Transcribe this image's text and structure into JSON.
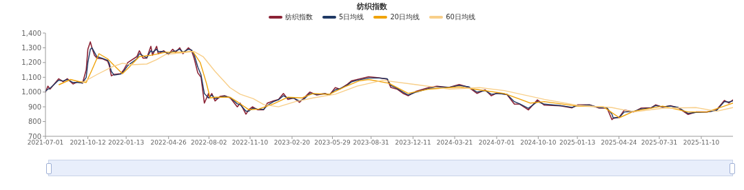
{
  "chart_data": {
    "type": "line",
    "title": "纺织指数",
    "legend": "top",
    "x": [
      "2021-07-01",
      "2021-07-07",
      "2021-07-12",
      "2021-08-02",
      "2021-08-13",
      "2021-08-23",
      "2021-09-06",
      "2021-09-17",
      "2021-09-29",
      "2021-10-08",
      "2021-10-12",
      "2021-10-18",
      "2021-10-22",
      "2021-10-28",
      "2021-11-03",
      "2021-11-17",
      "2021-11-29",
      "2021-12-03",
      "2021-12-08",
      "2021-12-15",
      "2021-12-31",
      "2022-01-07",
      "2022-01-17",
      "2022-02-08",
      "2022-02-14",
      "2022-02-23",
      "2022-03-04",
      "2022-03-14",
      "2022-03-18",
      "2022-03-28",
      "2022-04-01",
      "2022-04-14",
      "2022-04-26",
      "2022-05-06",
      "2022-05-13",
      "2022-05-23",
      "2022-05-31",
      "2022-06-13",
      "2022-06-21",
      "2022-06-27",
      "2022-07-06",
      "2022-07-14",
      "2022-07-22",
      "2022-08-01",
      "2022-08-03",
      "2022-08-09",
      "2022-08-17",
      "2022-08-29",
      "2022-09-09",
      "2022-09-23",
      "2022-10-10",
      "2022-10-17",
      "2022-10-31",
      "2022-11-07",
      "2022-11-16",
      "2022-11-28",
      "2022-12-13",
      "2022-12-22",
      "2023-01-06",
      "2023-01-18",
      "2023-01-30",
      "2023-02-10",
      "2023-02-24",
      "2023-03-10",
      "2023-03-21",
      "2023-04-04",
      "2023-04-21",
      "2023-05-11",
      "2023-05-22",
      "2023-06-05",
      "2023-06-16",
      "2023-07-03",
      "2023-07-14",
      "2023-07-28",
      "2023-08-25",
      "2023-09-19",
      "2023-10-09",
      "2023-10-18",
      "2023-11-02",
      "2023-11-16",
      "2023-11-29",
      "2023-12-19",
      "2024-01-19",
      "2024-02-07",
      "2024-03-07",
      "2024-04-01",
      "2024-04-25",
      "2024-05-14",
      "2024-06-03",
      "2024-06-18",
      "2024-07-02",
      "2024-07-26",
      "2024-08-13",
      "2024-08-26",
      "2024-09-16",
      "2024-10-08",
      "2024-10-25",
      "2024-12-03",
      "2024-12-31",
      "2025-01-13",
      "2025-02-12",
      "2025-03-07",
      "2025-03-26",
      "2025-04-07",
      "2025-04-10",
      "2025-04-25",
      "2025-05-07",
      "2025-05-30",
      "2025-06-17",
      "2025-07-11",
      "2025-07-22",
      "2025-08-08",
      "2025-08-27",
      "2025-09-15",
      "2025-10-09",
      "2025-10-28",
      "2025-11-24",
      "2025-12-17",
      "2026-01-05",
      "2026-01-16",
      "2026-01-26"
    ],
    "series": [
      {
        "name": "纺织指数",
        "color": "#8b2335",
        "values": [
          1000,
          1040,
          1020,
          1090,
          1070,
          1090,
          1055,
          1070,
          1060,
          1150,
          1290,
          1340,
          1300,
          1250,
          1230,
          1225,
          1210,
          1180,
          1110,
          1120,
          1125,
          1150,
          1200,
          1240,
          1280,
          1230,
          1230,
          1310,
          1250,
          1310,
          1260,
          1280,
          1255,
          1290,
          1270,
          1300,
          1260,
          1300,
          1280,
          1230,
          1130,
          1100,
          925,
          990,
          960,
          990,
          940,
          970,
          975,
          960,
          900,
          925,
          850,
          880,
          900,
          880,
          880,
          925,
          940,
          950,
          990,
          950,
          960,
          930,
          960,
          1000,
          980,
          990,
          980,
          1030,
          1020,
          1050,
          1075,
          1085,
          1104,
          1097,
          1088,
          1031,
          1020,
          992,
          975,
          1006,
          1031,
          1039,
          1031,
          1051,
          1031,
          991,
          1015,
          975,
          994,
          983,
          918,
          918,
          879,
          947,
          911,
          907,
          893,
          913,
          913,
          891,
          893,
          813,
          821,
          830,
          878,
          865,
          891,
          893,
          913,
          897,
          907,
          893,
          848,
          865,
          865,
          878,
          943,
          926,
          947
        ]
      },
      {
        "name": "5日均线",
        "color": "#1f3864",
        "values": [
          1005,
          1020,
          1025,
          1080,
          1075,
          1085,
          1065,
          1065,
          1062,
          1100,
          1200,
          1290,
          1300,
          1270,
          1240,
          1228,
          1215,
          1195,
          1140,
          1115,
          1122,
          1140,
          1180,
          1225,
          1260,
          1245,
          1232,
          1280,
          1270,
          1290,
          1275,
          1275,
          1262,
          1275,
          1278,
          1290,
          1270,
          1290,
          1285,
          1255,
          1170,
          1115,
          990,
          960,
          965,
          980,
          955,
          965,
          972,
          962,
          920,
          915,
          870,
          870,
          890,
          885,
          882,
          910,
          935,
          948,
          975,
          960,
          958,
          940,
          952,
          990,
          985,
          988,
          982,
          1015,
          1022,
          1045,
          1068,
          1080,
          1095,
          1095,
          1090,
          1045,
          1025,
          1000,
          980,
          1000,
          1025,
          1035,
          1032,
          1045,
          1035,
          1000,
          1010,
          985,
          990,
          985,
          935,
          920,
          890,
          935,
          918,
          908,
          896,
          908,
          912,
          895,
          893,
          850,
          825,
          828,
          865,
          868,
          886,
          892,
          908,
          900,
          905,
          896,
          855,
          862,
          865,
          875,
          935,
          932,
          940
        ]
      },
      {
        "name": "20日均线",
        "color": "#f0a30a",
        "x": [
          "2021-08-03",
          "2021-08-31",
          "2021-09-22",
          "2021-10-08",
          "2021-10-22",
          "2021-11-08",
          "2021-11-29",
          "2021-12-15",
          "2022-01-04",
          "2022-01-17",
          "2022-02-14",
          "2022-03-16",
          "2022-04-19",
          "2022-05-23",
          "2022-06-24",
          "2022-07-12",
          "2022-07-27",
          "2022-08-05",
          "2022-08-17",
          "2022-09-22",
          "2022-10-12",
          "2022-11-07",
          "2022-12-01",
          "2023-01-06",
          "2023-02-10",
          "2023-03-15",
          "2023-04-12",
          "2023-05-22",
          "2023-06-28",
          "2023-08-01",
          "2023-08-25",
          "2023-10-13",
          "2023-11-29",
          "2024-01-19",
          "2024-04-01",
          "2024-05-20",
          "2024-07-20",
          "2024-09-21",
          "2024-10-25",
          "2025-01-13",
          "2025-03-17",
          "2025-04-25",
          "2025-05-30",
          "2025-08-08",
          "2025-10-09",
          "2025-11-24",
          "2026-01-05",
          "2026-01-26"
        ],
        "values": [
          1050,
          1085,
          1070,
          1065,
          1150,
          1260,
          1225,
          1180,
          1125,
          1160,
          1240,
          1250,
          1270,
          1270,
          1275,
          1200,
          1060,
          960,
          965,
          965,
          930,
          880,
          885,
          920,
          965,
          960,
          990,
          985,
          1035,
          1075,
          1085,
          1060,
          991,
          1020,
          1035,
          1015,
          990,
          925,
          935,
          905,
          900,
          826,
          870,
          905,
          865,
          865,
          905,
          925
        ]
      },
      {
        "name": "60日均线",
        "color": "#f8cf8a",
        "x": [
          "2021-09-29",
          "2021-11-04",
          "2021-12-09",
          "2022-01-04",
          "2022-01-26",
          "2022-03-04",
          "2022-03-28",
          "2022-04-19",
          "2022-05-23",
          "2022-06-27",
          "2022-07-19",
          "2022-08-17",
          "2022-09-22",
          "2022-10-17",
          "2022-11-18",
          "2022-12-13",
          "2023-01-18",
          "2023-02-28",
          "2023-04-12",
          "2023-06-05",
          "2023-07-28",
          "2023-09-28",
          "2023-12-19",
          "2024-03-07",
          "2024-05-20",
          "2024-07-20",
          "2024-10-25",
          "2025-01-13",
          "2025-04-07",
          "2025-05-30",
          "2025-08-08",
          "2025-10-28",
          "2025-12-17",
          "2026-01-26"
        ],
        "values": [
          1065,
          1120,
          1170,
          1195,
          1185,
          1190,
          1220,
          1255,
          1265,
          1275,
          1240,
          1140,
          1030,
          985,
          955,
          915,
          900,
          935,
          960,
          985,
          1040,
          1080,
          1050,
          1020,
          1030,
          1010,
          950,
          910,
          895,
          865,
          890,
          895,
          870,
          895
        ]
      }
    ],
    "xlim": [
      "2021-07-01",
      "2026-01-26"
    ],
    "xticks": [
      "2021-07-01",
      "2021-10-12",
      "2022-01-13",
      "2022-04-26",
      "2022-08-02",
      "2022-11-10",
      "2023-02-20",
      "2023-05-29",
      "2023-08-31",
      "2023-12-11",
      "2024-03-21",
      "2024-07-01",
      "2024-10-10",
      "2025-01-13",
      "2025-04-24",
      "2025-07-31",
      "2025-11-10"
    ],
    "ylim": [
      700,
      1400
    ],
    "yticks": [
      700,
      800,
      900,
      {
        "value": 1000,
        "label": "1,000"
      },
      {
        "value": 1100,
        "label": "1,100"
      },
      {
        "value": 1200,
        "label": "1,200"
      },
      {
        "value": 1300,
        "label": "1,300"
      },
      {
        "value": 1400,
        "label": "1,400"
      }
    ]
  }
}
